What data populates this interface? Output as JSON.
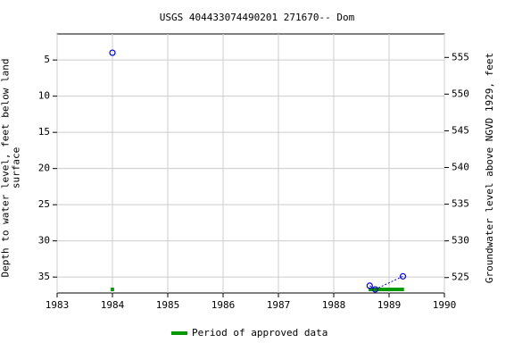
{
  "chart_data": {
    "type": "scatter",
    "title": "USGS 404433074490201 271670-- Dom",
    "y_label": "Depth to water level, feet below land surface",
    "y2_label": "Groundwater level above NGVD 1929, feet",
    "xlim": [
      1983,
      1990
    ],
    "xticks": [
      1983,
      1984,
      1985,
      1986,
      1987,
      1988,
      1989,
      1990
    ],
    "ylim": [
      37.2,
      1.4
    ],
    "yticks": [
      5,
      10,
      15,
      20,
      25,
      30,
      35
    ],
    "y2lim": [
      522.9,
      558.2
    ],
    "y2ticks": [
      525,
      530,
      535,
      540,
      545,
      550,
      555
    ],
    "grid": true,
    "series": [
      {
        "color": "#0000cc",
        "x": [
          1984.0,
          1988.65,
          1988.75,
          1989.25
        ],
        "values": [
          4.0,
          36.2,
          36.7,
          34.9
        ]
      }
    ],
    "approved_periods": [
      [
        1983.97,
        1984.03
      ],
      [
        1988.63,
        1989.27
      ]
    ],
    "approved_color": "#009900",
    "legend": "Period of approved data"
  }
}
